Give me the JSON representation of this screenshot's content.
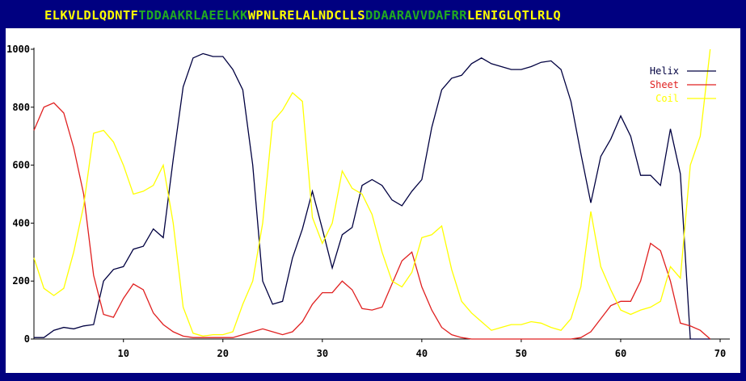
{
  "sequence": {
    "segments": [
      {
        "text": "ELKVLDLQDNTF",
        "color": "#FFFF00"
      },
      {
        "text": "TDDAAKRLAEELKK",
        "color": "#22AA22"
      },
      {
        "text": "WPNLRELALNDCLLS",
        "color": "#FFFF00"
      },
      {
        "text": "DDAARAVVDAFRR",
        "color": "#22AA22"
      },
      {
        "text": "LENIGLQTLRLQ",
        "color": "#FFFF00"
      }
    ]
  },
  "colors": {
    "frame": "#000080",
    "plot_background": "#FFFFFF",
    "axis": "#000000"
  },
  "chart_data": {
    "type": "line",
    "xlim": [
      1,
      70
    ],
    "ylim": [
      0,
      1000
    ],
    "xticks": [
      10,
      20,
      30,
      40,
      50,
      60,
      70
    ],
    "yticks": [
      0,
      200,
      400,
      600,
      800,
      1000
    ],
    "grid": false,
    "legend_position": "top-right",
    "x": [
      1,
      2,
      3,
      4,
      5,
      6,
      7,
      8,
      9,
      10,
      11,
      12,
      13,
      14,
      15,
      16,
      17,
      18,
      19,
      20,
      21,
      22,
      23,
      24,
      25,
      26,
      27,
      28,
      29,
      30,
      31,
      32,
      33,
      34,
      35,
      36,
      37,
      38,
      39,
      40,
      41,
      42,
      43,
      44,
      45,
      46,
      47,
      48,
      49,
      50,
      51,
      52,
      53,
      54,
      55,
      56,
      57,
      58,
      59,
      60,
      61,
      62,
      63,
      64,
      65,
      66,
      67,
      68,
      69
    ],
    "series": [
      {
        "name": "Helix",
        "color": "#000040",
        "values": [
          5,
          5,
          30,
          40,
          35,
          45,
          50,
          200,
          240,
          250,
          310,
          320,
          380,
          350,
          620,
          870,
          970,
          985,
          975,
          975,
          930,
          860,
          600,
          200,
          120,
          130,
          280,
          380,
          510,
          380,
          245,
          360,
          385,
          530,
          550,
          530,
          480,
          460,
          510,
          550,
          730,
          860,
          900,
          910,
          950,
          970,
          950,
          940,
          930,
          930,
          940,
          955,
          960,
          930,
          820,
          640,
          470,
          630,
          690,
          770,
          700,
          565,
          565,
          530,
          725,
          570,
          0,
          0,
          0
        ],
        "values_note": ""
      },
      {
        "name": "Sheet",
        "color": "#E02020",
        "values": [
          720,
          800,
          815,
          780,
          660,
          500,
          220,
          85,
          75,
          140,
          190,
          170,
          90,
          50,
          25,
          10,
          5,
          5,
          5,
          5,
          5,
          15,
          25,
          35,
          25,
          15,
          25,
          60,
          120,
          160,
          160,
          200,
          170,
          105,
          100,
          110,
          190,
          270,
          300,
          180,
          100,
          40,
          15,
          5,
          0,
          0,
          0,
          0,
          0,
          0,
          0,
          0,
          0,
          0,
          0,
          5,
          25,
          70,
          115,
          130,
          130,
          200,
          330,
          305,
          200,
          55,
          45,
          30,
          0
        ],
        "values_note": ""
      },
      {
        "name": "Coil",
        "color": "#FFFF00",
        "values": [
          280,
          175,
          150,
          175,
          300,
          460,
          710,
          720,
          680,
          600,
          500,
          510,
          530,
          600,
          400,
          110,
          20,
          10,
          15,
          15,
          25,
          120,
          200,
          400,
          750,
          790,
          850,
          820,
          420,
          330,
          400,
          580,
          520,
          500,
          430,
          300,
          200,
          180,
          230,
          350,
          360,
          390,
          240,
          130,
          90,
          60,
          30,
          40,
          50,
          50,
          60,
          55,
          40,
          30,
          70,
          180,
          440,
          250,
          170,
          100,
          85,
          100,
          110,
          130,
          250,
          210,
          600,
          700,
          1000
        ],
        "values_note": ""
      }
    ]
  }
}
